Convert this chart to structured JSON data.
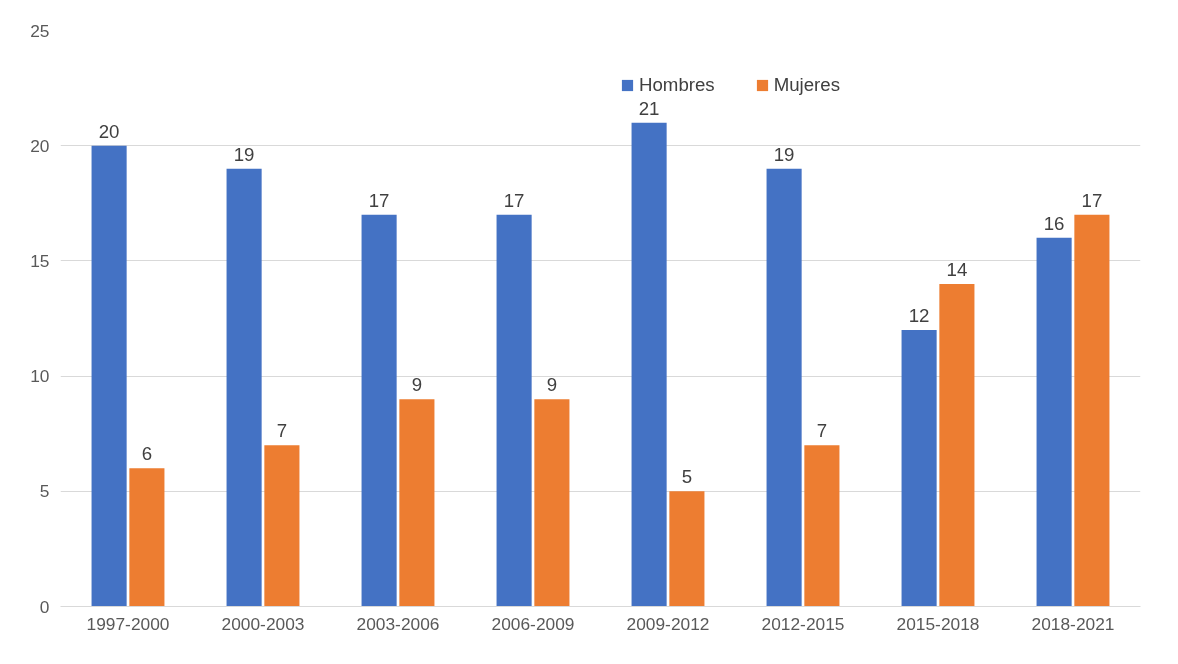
{
  "chart_data": {
    "type": "bar",
    "categories": [
      "1997-2000",
      "2000-2003",
      "2003-2006",
      "2006-2009",
      "2009-2012",
      "2012-2015",
      "2015-2018",
      "2018-2021"
    ],
    "series": [
      {
        "name": "Hombres",
        "color": "#4472c4",
        "values": [
          20,
          19,
          17,
          17,
          21,
          19,
          12,
          16
        ]
      },
      {
        "name": "Mujeres",
        "color": "#ed7d31",
        "values": [
          6,
          7,
          9,
          9,
          5,
          7,
          14,
          17
        ]
      }
    ],
    "ylim": [
      0,
      25
    ],
    "yticks": [
      0,
      5,
      10,
      15,
      20,
      25
    ],
    "grid": "y",
    "legend": "top right",
    "data_labels": true
  }
}
